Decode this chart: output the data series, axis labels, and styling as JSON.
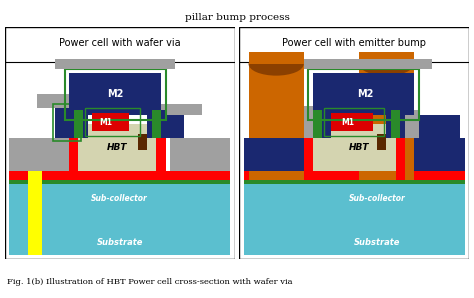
{
  "title_line1": "pillar bump process",
  "caption": "Fig. 1(b) Illustration of HBT Power cell cross-section with wafer via",
  "left_panel_title": "Power cell with wafer via",
  "right_panel_title": "Power cell with emitter bump",
  "colors": {
    "background": "#ffffff",
    "substrate": "#5bbfcf",
    "sub_collector_stripe": "#5bbfcf",
    "red_layer": "#ff0000",
    "hbt_body": "#d4d4b0",
    "navy": "#1a2870",
    "green": "#2a8a2a",
    "gray": "#a0a0a0",
    "dark_gray": "#707070",
    "m1_red": "#dd0000",
    "orange_bump": "#cc6600",
    "orange_bump_top": "#8b4000",
    "yellow": "#ffff00",
    "black": "#000000",
    "white": "#ffffff",
    "dark_brown": "#5a2800"
  },
  "fig_width": 4.74,
  "fig_height": 2.98,
  "dpi": 100
}
